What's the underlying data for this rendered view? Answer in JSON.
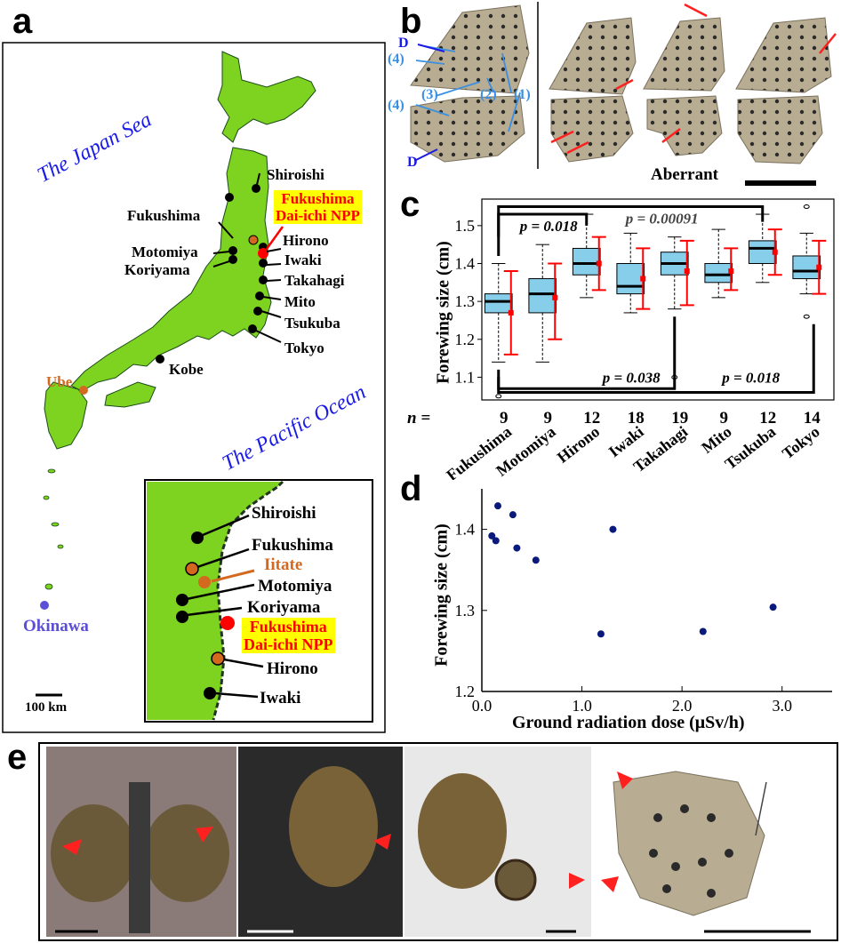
{
  "panels": {
    "a": "a",
    "b": "b",
    "c": "c",
    "d": "d",
    "e": "e"
  },
  "map": {
    "sea_west": "The Japan Sea",
    "sea_east": "The Pacific Ocean",
    "cities": [
      "Shiroishi",
      "Fukushima",
      "Motomiya",
      "Koriyama",
      "Hirono",
      "Iwaki",
      "Takahagi",
      "Mito",
      "Tsukuba",
      "Tokyo",
      "Kobe"
    ],
    "ube": "Ube",
    "okinawa": "Okinawa",
    "npp_line1": "Fukushima",
    "npp_line2": "Dai-ichi NPP",
    "scale": "100 km",
    "inset_cities": [
      "Shiroishi",
      "Fukushima",
      "Motomiya",
      "Koriyama",
      "Hirono",
      "Iwaki"
    ],
    "inset_iitate": "Iitate",
    "colors": {
      "land": "#7ed321",
      "npp": "#ff0000",
      "ube": "#d2691e",
      "okinawa": "#5b4fd6",
      "sea_text": "#1a1ae6",
      "highlight": "#ffff00"
    }
  },
  "wings": {
    "d_label": "D",
    "numbers": [
      "(1)",
      "(2)",
      "(3)",
      "(4)"
    ],
    "aberrant": "Aberrant",
    "label_color": "#3b8fe0"
  },
  "chart_data": [
    {
      "type": "box",
      "ylabel": "Forewing size (cm)",
      "ylim": [
        1.04,
        1.57
      ],
      "yticks": [
        "1.1",
        "1.2",
        "1.3",
        "1.4",
        "1.5"
      ],
      "n_label": "n =",
      "categories": [
        "Fukushima",
        "Motomiya",
        "Hirono",
        "Iwaki",
        "Takahagi",
        "Mito",
        "Tsukuba",
        "Tokyo"
      ],
      "n": [
        "9",
        "9",
        "12",
        "18",
        "19",
        "9",
        "12",
        "14"
      ],
      "boxes": [
        {
          "q1": 1.27,
          "median": 1.3,
          "q3": 1.32,
          "whisker_low": 1.14,
          "whisker_high": 1.4,
          "mean": 1.27,
          "sd_low": 1.16,
          "sd_high": 1.38,
          "outliers": [
            1.05
          ]
        },
        {
          "q1": 1.27,
          "median": 1.32,
          "q3": 1.36,
          "whisker_low": 1.14,
          "whisker_high": 1.45,
          "mean": 1.31,
          "sd_low": 1.2,
          "sd_high": 1.4,
          "outliers": []
        },
        {
          "q1": 1.37,
          "median": 1.4,
          "q3": 1.44,
          "whisker_low": 1.31,
          "whisker_high": 1.53,
          "mean": 1.4,
          "sd_low": 1.33,
          "sd_high": 1.47,
          "outliers": []
        },
        {
          "q1": 1.32,
          "median": 1.34,
          "q3": 1.4,
          "whisker_low": 1.27,
          "whisker_high": 1.48,
          "mean": 1.36,
          "sd_low": 1.28,
          "sd_high": 1.44,
          "outliers": []
        },
        {
          "q1": 1.37,
          "median": 1.4,
          "q3": 1.43,
          "whisker_low": 1.28,
          "whisker_high": 1.47,
          "mean": 1.38,
          "sd_low": 1.29,
          "sd_high": 1.46,
          "outliers": [
            1.1
          ]
        },
        {
          "q1": 1.35,
          "median": 1.37,
          "q3": 1.4,
          "whisker_low": 1.31,
          "whisker_high": 1.49,
          "mean": 1.38,
          "sd_low": 1.33,
          "sd_high": 1.44,
          "outliers": []
        },
        {
          "q1": 1.4,
          "median": 1.44,
          "q3": 1.46,
          "whisker_low": 1.35,
          "whisker_high": 1.53,
          "mean": 1.43,
          "sd_low": 1.37,
          "sd_high": 1.49,
          "outliers": []
        },
        {
          "q1": 1.36,
          "median": 1.38,
          "q3": 1.42,
          "whisker_low": 1.32,
          "whisker_high": 1.48,
          "mean": 1.39,
          "sd_low": 1.32,
          "sd_high": 1.46,
          "outliers": [
            1.55,
            1.26
          ]
        }
      ],
      "colors": {
        "box": "#87ceeb",
        "sd": "#ff0000"
      },
      "pvalues": [
        "p = 0.018",
        "p = 0.00091",
        "p = 0.038",
        "p = 0.018"
      ]
    },
    {
      "type": "scatter",
      "xlabel": "Ground radiation dose (μSv/h)",
      "ylabel": "Forewing size (cm)",
      "xlim": [
        0,
        3.5
      ],
      "ylim": [
        1.2,
        1.45
      ],
      "xticks": [
        "0.0",
        "1.0",
        "2.0",
        "3.0"
      ],
      "yticks": [
        "1.2",
        "1.3",
        "1.4"
      ],
      "x": [
        0.1,
        0.14,
        0.16,
        0.31,
        0.35,
        0.54,
        1.19,
        1.31,
        2.21,
        2.91
      ],
      "y": [
        1.392,
        1.386,
        1.429,
        1.418,
        1.377,
        1.362,
        1.271,
        1.4,
        1.274,
        1.304
      ],
      "color": "#0a1a7a"
    }
  ]
}
